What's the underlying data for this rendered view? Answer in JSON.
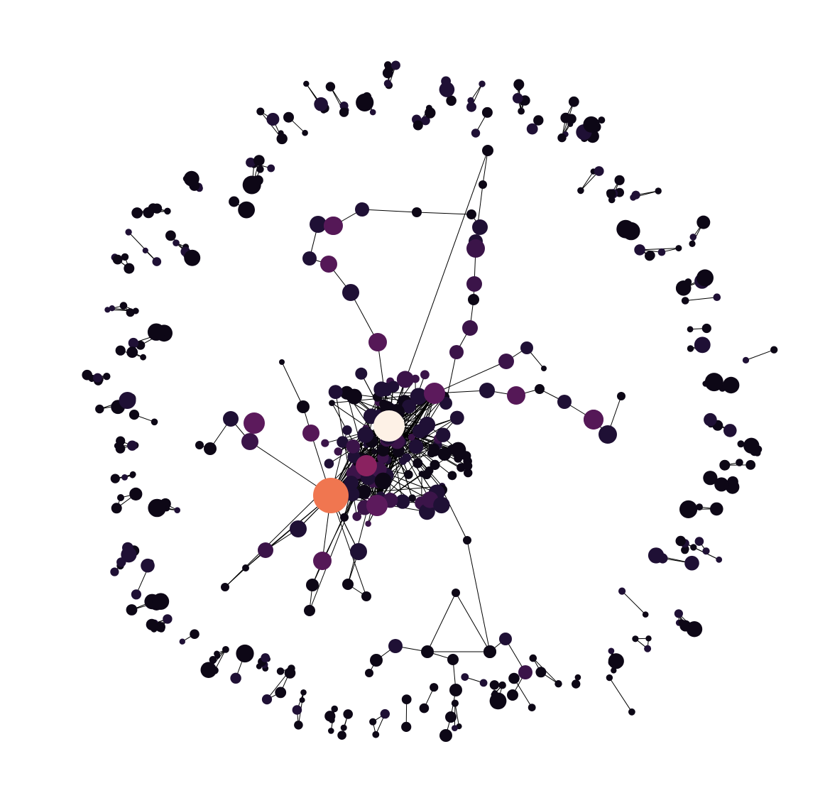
{
  "figure": {
    "type": "network-graph",
    "labels_shown": false,
    "edge_color": "#000000",
    "node_colormap": [
      "#0d0716",
      "#1f1035",
      "#3b1449",
      "#551857",
      "#6f1c5c",
      "#8a2260",
      "#f07650",
      "#fbe8dc"
    ],
    "hub_colors": {
      "brightest": "#fdf1e6",
      "orange": "#f07650",
      "magenta": "#8a2260",
      "purple": "#5c1a5c"
    }
  }
}
